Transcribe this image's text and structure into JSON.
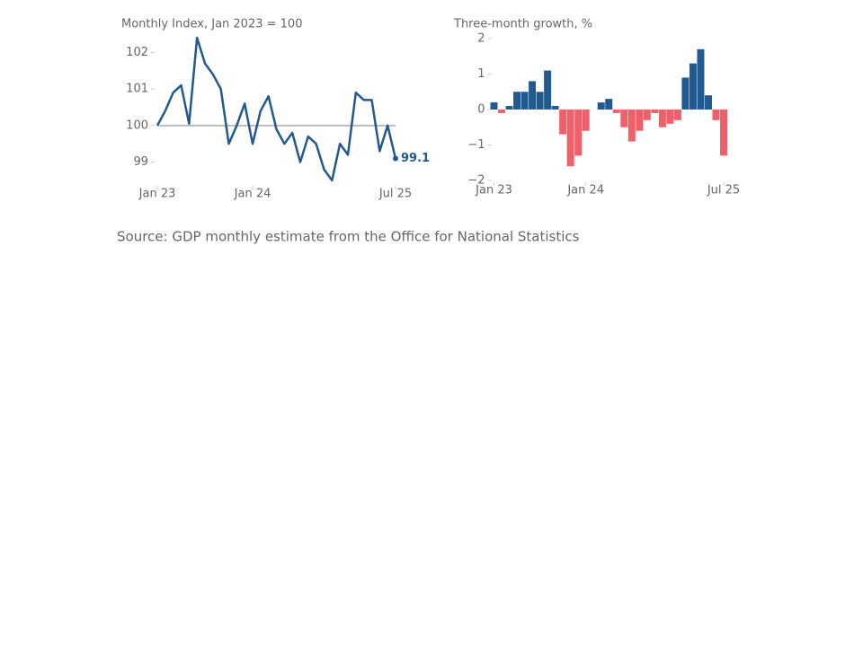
{
  "chart_data": [
    {
      "type": "line",
      "title": "Monthly Index, Jan 2023 = 100",
      "x": [
        "2023-01",
        "2023-02",
        "2023-03",
        "2023-04",
        "2023-05",
        "2023-06",
        "2023-07",
        "2023-08",
        "2023-09",
        "2023-10",
        "2023-11",
        "2023-12",
        "2024-01",
        "2024-02",
        "2024-03",
        "2024-04",
        "2024-05",
        "2024-06",
        "2024-07",
        "2024-08",
        "2024-09",
        "2024-10",
        "2024-11",
        "2024-12",
        "2025-01",
        "2025-02",
        "2025-03",
        "2025-04",
        "2025-05",
        "2025-06",
        "2025-07"
      ],
      "series": [
        {
          "name": "Monthly Index",
          "color": "#22598f",
          "values": [
            100,
            100.4,
            100.9,
            101.1,
            100.05,
            102.4,
            101.7,
            101.4,
            101.0,
            99.5,
            100.0,
            100.6,
            99.5,
            100.4,
            100.8,
            99.9,
            99.5,
            99.8,
            99.0,
            99.7,
            99.5,
            98.8,
            98.5,
            99.5,
            99.2,
            100.9,
            100.7,
            100.7,
            99.3,
            100.0,
            99.1
          ],
          "end_label": "99.1"
        }
      ],
      "reference_line": 100,
      "reference_color": "#bbbbbb",
      "ylim": [
        98.4,
        102.5
      ],
      "yticks": [
        99,
        100,
        101,
        102
      ],
      "xticks": [
        {
          "value": "2023-01",
          "label": "Jan 23"
        },
        {
          "value": "2024-01",
          "label": "Jan 24"
        },
        {
          "value": "2025-07",
          "label": "Jul 25"
        }
      ]
    },
    {
      "type": "bar",
      "title": "Three-month growth, %",
      "x": [
        "2023-01",
        "2023-02",
        "2023-03",
        "2023-04",
        "2023-05",
        "2023-06",
        "2023-07",
        "2023-08",
        "2023-09",
        "2023-10",
        "2023-11",
        "2023-12",
        "2024-01",
        "2024-02",
        "2024-03",
        "2024-04",
        "2024-05",
        "2024-06",
        "2024-07",
        "2024-08",
        "2024-09",
        "2024-10",
        "2024-11",
        "2024-12",
        "2025-01",
        "2025-02",
        "2025-03",
        "2025-04",
        "2025-05",
        "2025-06",
        "2025-07"
      ],
      "values": [
        0.2,
        -0.1,
        0.1,
        0.5,
        0.5,
        0.8,
        0.5,
        1.1,
        0.1,
        -0.7,
        -1.6,
        -1.3,
        -0.6,
        0,
        0.2,
        0.3,
        -0.1,
        -0.5,
        -0.9,
        -0.6,
        -0.3,
        -0.1,
        -0.5,
        -0.4,
        -0.3,
        0.9,
        1.3,
        1.7,
        0.4,
        -0.3,
        -1.3
      ],
      "positive_color": "#22598f",
      "negative_color": "#f0606a",
      "ylim": [
        -2,
        2
      ],
      "yticks": [
        {
          "value": -2,
          "label": "−2"
        },
        {
          "value": -1,
          "label": "−1"
        },
        0,
        1,
        2
      ],
      "xticks": [
        {
          "value": "2023-01",
          "label": "Jan 23"
        },
        {
          "value": "2024-01",
          "label": "Jan 24"
        },
        {
          "value": "2025-07",
          "label": "Jul 25"
        }
      ]
    }
  ],
  "source": "Source: GDP monthly estimate from the Office for National Statistics"
}
